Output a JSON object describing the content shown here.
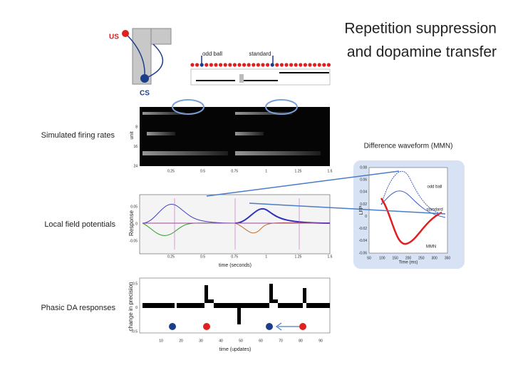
{
  "title": [
    "Repetition suppression",
    "and dopamine transfer"
  ],
  "maze": {
    "us": "US",
    "cs": "CS"
  },
  "stimulus": {
    "oddball": "odd ball",
    "standard": "standard"
  },
  "firing": {
    "label": "Simulated firing rates",
    "ylabel": "unit",
    "yticks": [
      "8",
      "16",
      "24"
    ],
    "xticks": [
      "0.25",
      "0.5",
      "0.75",
      "1",
      "1.25",
      "1.5"
    ]
  },
  "lfp": {
    "label": "Local field potentials",
    "ylabel": "Response",
    "yticks": [
      "0.05",
      "0",
      "-0.05"
    ],
    "xticks": [
      "0.25",
      "0.5",
      "0.75",
      "1",
      "1.25",
      "1.5"
    ],
    "xlabel": "time (seconds)"
  },
  "mmn": {
    "title": "Difference waveform (MMN)",
    "ylabel": "LFP",
    "xlabel": "Time (ms)",
    "yticks": [
      "0.08",
      "0.06",
      "0.04",
      "0.02",
      "0",
      "-0.02",
      "-0.04",
      "-0.06"
    ],
    "xticks": [
      "50",
      "100",
      "150",
      "200",
      "250",
      "300",
      "350"
    ],
    "oddball": "odd ball",
    "standard": "standard",
    "mmn": "MMN"
  },
  "da": {
    "label": "Phasic DA responses",
    "ylabel": "change in precision",
    "yticks": [
      "0.5",
      "0",
      "-0.5"
    ],
    "xticks": [
      "10",
      "20",
      "30",
      "40",
      "50",
      "60",
      "70",
      "80",
      "90"
    ],
    "xlabel": "time (updates)"
  }
}
